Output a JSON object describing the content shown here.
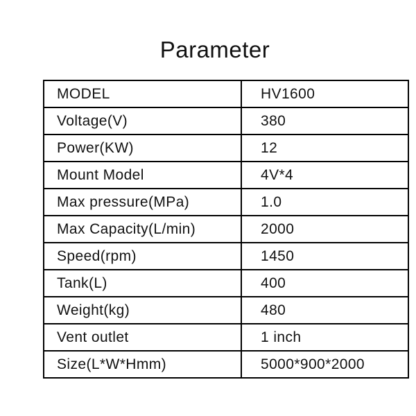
{
  "title": "Parameter",
  "table": {
    "rows": [
      {
        "label": "MODEL",
        "value": "HV1600"
      },
      {
        "label": "Voltage(V)",
        "value": "380"
      },
      {
        "label": "Power(KW)",
        "value": "12"
      },
      {
        "label": "Mount Model",
        "value": "4V*4"
      },
      {
        "label": "Max pressure(MPa)",
        "value": "1.0"
      },
      {
        "label": "Max Capacity(L/min)",
        "value": "2000"
      },
      {
        "label": "Speed(rpm)",
        "value": "1450"
      },
      {
        "label": "Tank(L)",
        "value": "400"
      },
      {
        "label": "Weight(kg)",
        "value": "480"
      },
      {
        "label": "Vent outlet",
        "value": "1 inch"
      },
      {
        "label": "Size(L*W*Hmm)",
        "value": "5000*900*2000"
      }
    ]
  },
  "colors": {
    "background": "#ffffff",
    "text": "#111111",
    "border": "#000000"
  }
}
